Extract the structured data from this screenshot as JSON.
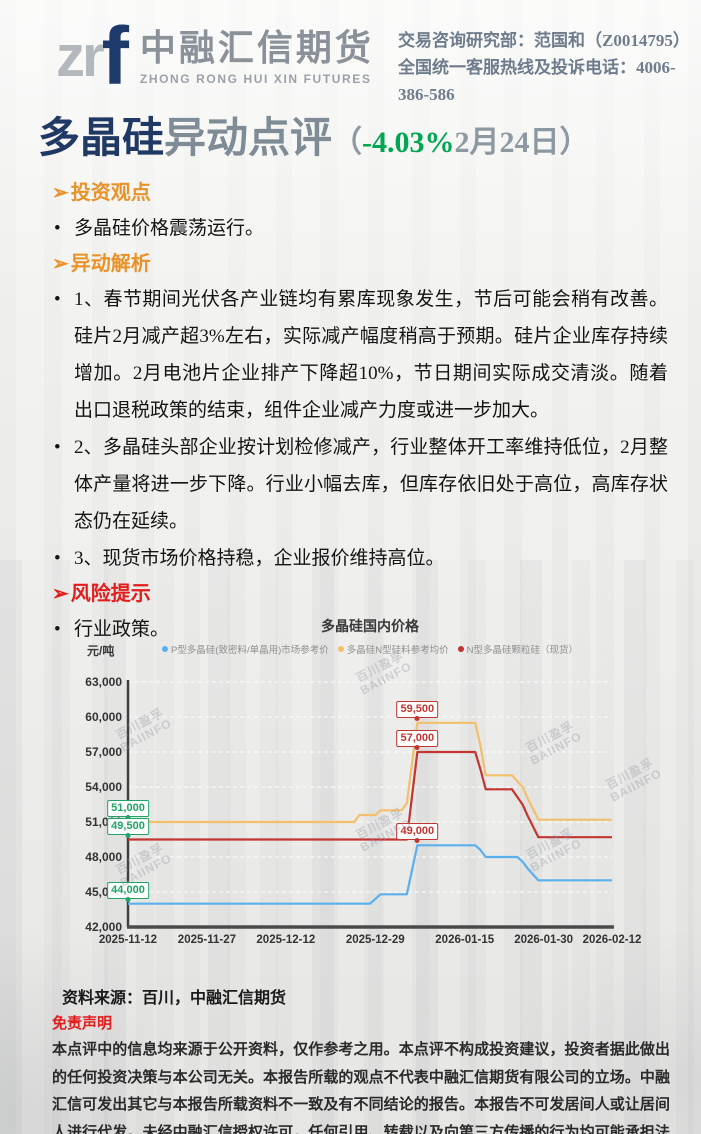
{
  "header": {
    "logo_zr": "zr",
    "logo_f": "f",
    "company_cn": "中融汇信期货",
    "company_en": "ZHONG RONG HUI XIN FUTURES",
    "contact_line1": "交易咨询研究部：范国和（Z0014795）",
    "contact_line2": "全国统一客服热线及投诉电话：4006-386-586"
  },
  "title": {
    "product": "多晶硅",
    "suffix": "异动点评",
    "paren_open": "（",
    "change": "-4.03%",
    "date": "2月24日）"
  },
  "heading_marker": "➢",
  "bullet_glyph": "•",
  "sections": [
    {
      "type": "heading",
      "color": "orange",
      "text": "投资观点"
    },
    {
      "type": "bullet",
      "text": "多晶硅价格震荡运行。"
    },
    {
      "type": "heading",
      "color": "orange",
      "text": "异动解析"
    },
    {
      "type": "bullet",
      "text": "1、春节期间光伏各产业链均有累库现象发生，节后可能会稍有改善。硅片2月减产超3%左右，实际减产幅度稍高于预期。硅片企业库存持续增加。2月电池片企业排产下降超10%，节日期间实际成交清淡。随着出口退税政策的结束，组件企业减产力度或进一步加大。"
    },
    {
      "type": "bullet",
      "text": "2、多晶硅头部企业按计划检修减产，行业整体开工率维持低位，2月整体产量将进一步下降。行业小幅去库，但库存依旧处于高位，高库存状态仍在延续。"
    },
    {
      "type": "bullet",
      "text": "3、现货市场价格持稳，企业报价维持高位。"
    },
    {
      "type": "heading",
      "color": "red",
      "text": "风险提示"
    },
    {
      "type": "bullet",
      "text": "行业政策。"
    }
  ],
  "chart_data": {
    "type": "line",
    "title": "多晶硅国内价格",
    "ylabel": "元/吨",
    "ylim": [
      42000,
      63000
    ],
    "y_ticks": [
      42000,
      45000,
      48000,
      51000,
      54000,
      57000,
      60000,
      63000
    ],
    "x_tick_labels": [
      "2025-11-12",
      "2025-11-27",
      "2025-12-12",
      "2025-12-29",
      "2026-01-15",
      "2026-01-30",
      "2026-02-12"
    ],
    "x_tick_days": [
      0,
      15,
      30,
      47,
      64,
      79,
      92
    ],
    "x_total_days": 92,
    "grid": true,
    "legend_position": "top",
    "series": [
      {
        "name": "P型多晶硅(致密料/单晶用)市场参考价",
        "color": "#5ab0ee",
        "points": [
          [
            0,
            44000
          ],
          [
            46,
            44000
          ],
          [
            48,
            44800
          ],
          [
            53,
            44800
          ],
          [
            55,
            49000
          ],
          [
            66,
            49000
          ],
          [
            67,
            48600
          ],
          [
            68,
            48000
          ],
          [
            74,
            48000
          ],
          [
            75,
            47600
          ],
          [
            76,
            47000
          ],
          [
            78,
            46000
          ],
          [
            92,
            46000
          ]
        ]
      },
      {
        "name": "多晶硅N型硅料参考均价",
        "color": "#f2bf6b",
        "points": [
          [
            0,
            51000
          ],
          [
            43,
            51000
          ],
          [
            44,
            51600
          ],
          [
            47,
            51600
          ],
          [
            48,
            52000
          ],
          [
            52,
            52000
          ],
          [
            53,
            52600
          ],
          [
            55,
            59500
          ],
          [
            66,
            59500
          ],
          [
            67,
            57500
          ],
          [
            68,
            55000
          ],
          [
            73,
            55000
          ],
          [
            75,
            54000
          ],
          [
            76,
            53000
          ],
          [
            78,
            51200
          ],
          [
            92,
            51200
          ]
        ]
      },
      {
        "name": "N型多晶硅颗粒硅（现货）",
        "color": "#c23531",
        "points": [
          [
            0,
            49500
          ],
          [
            53,
            49500
          ],
          [
            55,
            57000
          ],
          [
            66,
            57000
          ],
          [
            67,
            55500
          ],
          [
            68,
            53800
          ],
          [
            73,
            53800
          ],
          [
            75,
            52500
          ],
          [
            76,
            51500
          ],
          [
            78,
            49700
          ],
          [
            92,
            49700
          ]
        ]
      }
    ],
    "annotations": [
      {
        "label": "51,000",
        "style": "green",
        "day": 0,
        "value": 51000
      },
      {
        "label": "49,500",
        "style": "green",
        "day": 0,
        "value": 49500
      },
      {
        "label": "44,000",
        "style": "green",
        "day": 0,
        "value": 44000
      },
      {
        "label": "59,500",
        "style": "red",
        "day": 55,
        "value": 59500
      },
      {
        "label": "57,000",
        "style": "red",
        "day": 55,
        "value": 57000
      },
      {
        "label": "49,000",
        "style": "red",
        "day": 55,
        "value": 49000
      }
    ],
    "annotation_colors": {
      "green": "#21a366",
      "red": "#c23531"
    },
    "watermark_cn": "百川盈孚",
    "watermark_en": "BAIINFO"
  },
  "source": "资料来源：百川，中融汇信期货",
  "disclaimer": {
    "heading": "免责声明",
    "body": "本点评中的信息均来源于公开资料，仅作参考之用。本点评不构成投资建议，投资者据此做出的任何投资决策与本公司无关。本报告所载的观点不代表中融汇信期货有限公司的立场。中融汇信可发出其它与本报告所载资料不一致及有不同结论的报告。本报告不可发居间人或让居间人进行代发。未经中融汇信授权许可，任何引用、转载以及向第三方传播的行为均可能承担法律责任。"
  },
  "colors": {
    "brand_navy": "#1d3a6b",
    "title_gray": "#7f8b95",
    "change_green": "#00a651",
    "heading_orange": "#e8922a",
    "risk_red": "#e31c1c",
    "contact_slate": "#6e7c8c"
  }
}
